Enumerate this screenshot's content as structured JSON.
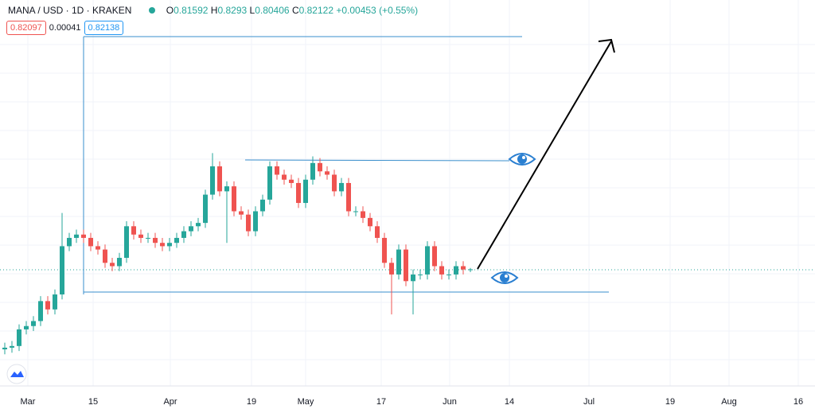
{
  "chart_data": {
    "type": "candlestick",
    "symbol": "MANA / USD · 1D · KRAKEN",
    "ohlc_labels": [
      "O",
      "H",
      "L",
      "C"
    ],
    "change": "+0.00453 (+0.55%)",
    "sell_price": "0.82097",
    "spread": "0.00041",
    "buy_price": "0.82138",
    "xticks": [
      "Mar",
      "15",
      "Apr",
      "19",
      "May",
      "17",
      "Jun",
      "14",
      "Jul",
      "19",
      "Aug",
      "16"
    ],
    "ylim": [
      0.12,
      2.44
    ],
    "grid": true,
    "up_color": "#26a69a",
    "down_color": "#ef5350",
    "open": [
      0.34,
      0.35,
      0.36,
      0.46,
      0.48,
      0.51,
      0.63,
      0.58,
      0.67,
      0.96,
      1.01,
      1.03,
      1.01,
      0.96,
      0.94,
      0.86,
      0.84,
      0.89,
      1.08,
      1.03,
      1.01,
      1.01,
      0.98,
      0.96,
      0.98,
      1.01,
      1.05,
      1.08,
      1.1,
      1.27,
      1.44,
      1.29,
      1.32,
      1.17,
      1.15,
      1.05,
      1.17,
      1.24,
      1.44,
      1.39,
      1.36,
      1.34,
      1.22,
      1.36,
      1.46,
      1.41,
      1.39,
      1.29,
      1.34,
      1.17,
      1.17,
      1.13,
      1.08,
      1.01,
      0.86,
      0.79,
      0.94,
      0.75,
      0.79,
      0.79,
      0.96,
      0.84,
      0.79,
      0.79,
      0.84,
      0.81592
    ],
    "high": [
      0.38,
      0.39,
      0.49,
      0.51,
      0.54,
      0.66,
      0.66,
      0.7,
      1.16,
      1.04,
      1.06,
      1.06,
      1.04,
      0.99,
      0.97,
      0.89,
      0.92,
      1.11,
      1.11,
      1.06,
      1.04,
      1.04,
      1.01,
      1.01,
      1.04,
      1.08,
      1.11,
      1.13,
      1.3,
      1.52,
      1.47,
      1.35,
      1.35,
      1.2,
      1.18,
      1.2,
      1.27,
      1.47,
      1.47,
      1.42,
      1.39,
      1.37,
      1.39,
      1.5,
      1.49,
      1.44,
      1.42,
      1.37,
      1.37,
      1.2,
      1.2,
      1.16,
      1.11,
      1.04,
      0.89,
      0.97,
      0.97,
      0.82,
      0.82,
      0.99,
      0.99,
      0.87,
      0.82,
      0.87,
      0.87,
      0.8293
    ],
    "low": [
      0.31,
      0.32,
      0.33,
      0.43,
      0.45,
      0.48,
      0.55,
      0.55,
      0.64,
      0.93,
      0.98,
      0.98,
      0.93,
      0.91,
      0.83,
      0.81,
      0.81,
      0.86,
      1.0,
      0.98,
      0.98,
      0.95,
      0.93,
      0.93,
      0.95,
      0.98,
      1.02,
      1.05,
      1.07,
      1.24,
      1.26,
      0.98,
      1.14,
      1.12,
      1.02,
      1.02,
      1.14,
      1.21,
      1.36,
      1.33,
      1.31,
      1.19,
      1.19,
      1.33,
      1.38,
      1.36,
      1.26,
      1.26,
      1.14,
      1.14,
      1.1,
      1.05,
      0.98,
      0.83,
      0.55,
      0.76,
      0.72,
      0.55,
      0.76,
      0.76,
      0.81,
      0.76,
      0.76,
      0.76,
      0.79,
      0.80406
    ],
    "close": [
      0.35,
      0.36,
      0.46,
      0.48,
      0.51,
      0.63,
      0.58,
      0.67,
      0.96,
      1.01,
      1.03,
      1.01,
      0.96,
      0.94,
      0.86,
      0.84,
      0.89,
      1.08,
      1.03,
      1.01,
      1.01,
      0.98,
      0.96,
      0.98,
      1.01,
      1.05,
      1.08,
      1.1,
      1.27,
      1.44,
      1.29,
      1.32,
      1.17,
      1.15,
      1.05,
      1.17,
      1.24,
      1.44,
      1.39,
      1.36,
      1.34,
      1.22,
      1.36,
      1.46,
      1.41,
      1.39,
      1.29,
      1.34,
      1.17,
      1.17,
      1.13,
      1.08,
      1.01,
      0.86,
      0.79,
      0.94,
      0.75,
      0.79,
      0.79,
      0.96,
      0.84,
      0.79,
      0.79,
      0.84,
      0.82,
      0.82122
    ]
  }
}
